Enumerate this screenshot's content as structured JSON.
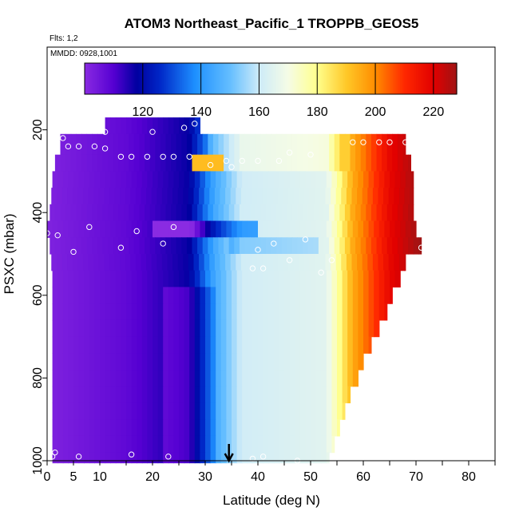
{
  "chart_data": {
    "type": "heatmap",
    "title": "ATOM3 Northeast_Pacific_1 TROPPB_GEOS5",
    "flights_label": "Flts: 1,2",
    "date_label": "MMDD: 0928,1001",
    "xlabel": "Latitude (deg N)",
    "ylabel": "PSXC (mbar)",
    "xlim": [
      0,
      85
    ],
    "ylim": [
      1000,
      0
    ],
    "xticks": [
      0,
      5,
      10,
      20,
      30,
      40,
      50,
      60,
      70,
      80
    ],
    "xtick_labels": [
      "0",
      "5",
      "10",
      "20",
      "30",
      "40",
      "50",
      "60",
      "70",
      "80"
    ],
    "yticks": [
      200,
      400,
      600,
      800,
      1000
    ],
    "ytick_labels": [
      "200",
      "400",
      "600",
      "800",
      "1000"
    ],
    "colorbar": {
      "min": 100,
      "max": 228,
      "ticks": [
        120,
        140,
        160,
        180,
        200,
        220
      ],
      "tick_labels": [
        "120",
        "140",
        "160",
        "180",
        "200",
        "220"
      ]
    },
    "marker_latitude": 34.5,
    "layers": [
      {
        "p0": 170,
        "p1": 210,
        "lat0": 11,
        "lat1": 29
      },
      {
        "p0": 210,
        "p1": 260,
        "lat0": 2.5,
        "lat1": 68
      },
      {
        "p0": 260,
        "p1": 300,
        "lat0": 1.5,
        "lat1": 69
      },
      {
        "p0": 300,
        "p1": 340,
        "lat0": 1,
        "lat1": 69.5
      },
      {
        "p0": 340,
        "p1": 380,
        "lat0": 0.8,
        "lat1": 69.5
      },
      {
        "p0": 380,
        "p1": 420,
        "lat0": 0.5,
        "lat1": 69.5
      },
      {
        "p0": 420,
        "p1": 460,
        "lat0": 0,
        "lat1": 70
      },
      {
        "p0": 460,
        "p1": 500,
        "lat0": 0.5,
        "lat1": 71
      },
      {
        "p0": 500,
        "p1": 540,
        "lat0": 0.8,
        "lat1": 68
      },
      {
        "p0": 540,
        "p1": 580,
        "lat0": 1,
        "lat1": 67
      },
      {
        "p0": 580,
        "p1": 620,
        "lat0": 1,
        "lat1": 65.5
      },
      {
        "p0": 620,
        "p1": 660,
        "lat0": 1,
        "lat1": 64.5
      },
      {
        "p0": 660,
        "p1": 700,
        "lat0": 1,
        "lat1": 63
      },
      {
        "p0": 700,
        "p1": 740,
        "lat0": 1,
        "lat1": 61.5
      },
      {
        "p0": 740,
        "p1": 780,
        "lat0": 1,
        "lat1": 60
      },
      {
        "p0": 780,
        "p1": 820,
        "lat0": 1,
        "lat1": 59
      },
      {
        "p0": 820,
        "p1": 860,
        "lat0": 1,
        "lat1": 57.5
      },
      {
        "p0": 860,
        "p1": 900,
        "lat0": 1,
        "lat1": 56.5
      },
      {
        "p0": 900,
        "p1": 940,
        "lat0": 1,
        "lat1": 55.5
      },
      {
        "p0": 940,
        "p1": 980,
        "lat0": 1,
        "lat1": 54.5
      },
      {
        "p0": 980,
        "p1": 1005,
        "lat0": 1,
        "lat1": 53.5
      }
    ],
    "points": [
      {
        "lat": 3,
        "p": 220
      },
      {
        "lat": 4,
        "p": 240
      },
      {
        "lat": 6,
        "p": 240
      },
      {
        "lat": 9,
        "p": 240
      },
      {
        "lat": 11,
        "p": 245
      },
      {
        "lat": 11,
        "p": 205
      },
      {
        "lat": 14,
        "p": 265
      },
      {
        "lat": 16,
        "p": 265
      },
      {
        "lat": 19,
        "p": 265
      },
      {
        "lat": 20,
        "p": 205
      },
      {
        "lat": 22,
        "p": 265
      },
      {
        "lat": 24,
        "p": 265
      },
      {
        "lat": 27,
        "p": 265
      },
      {
        "lat": 26,
        "p": 195
      },
      {
        "lat": 28,
        "p": 185
      },
      {
        "lat": 31,
        "p": 285
      },
      {
        "lat": 34,
        "p": 275
      },
      {
        "lat": 35,
        "p": 290
      },
      {
        "lat": 37,
        "p": 275
      },
      {
        "lat": 40,
        "p": 275
      },
      {
        "lat": 44,
        "p": 275
      },
      {
        "lat": 46,
        "p": 255
      },
      {
        "lat": 50,
        "p": 260
      },
      {
        "lat": 58,
        "p": 230
      },
      {
        "lat": 60,
        "p": 230
      },
      {
        "lat": 63,
        "p": 230
      },
      {
        "lat": 65,
        "p": 230
      },
      {
        "lat": 68,
        "p": 230
      },
      {
        "lat": 0,
        "p": 450
      },
      {
        "lat": 2,
        "p": 455
      },
      {
        "lat": 5,
        "p": 495
      },
      {
        "lat": 8,
        "p": 435
      },
      {
        "lat": 14,
        "p": 485
      },
      {
        "lat": 17,
        "p": 445
      },
      {
        "lat": 22,
        "p": 475
      },
      {
        "lat": 24,
        "p": 435
      },
      {
        "lat": 40,
        "p": 490
      },
      {
        "lat": 39,
        "p": 535
      },
      {
        "lat": 41,
        "p": 535
      },
      {
        "lat": 43,
        "p": 475
      },
      {
        "lat": 46,
        "p": 515
      },
      {
        "lat": 49,
        "p": 465
      },
      {
        "lat": 52,
        "p": 545
      },
      {
        "lat": 54,
        "p": 515
      },
      {
        "lat": 71,
        "p": 485
      },
      {
        "lat": 1,
        "p": 990
      },
      {
        "lat": 1.5,
        "p": 980
      },
      {
        "lat": 6,
        "p": 990
      },
      {
        "lat": 16,
        "p": 985
      },
      {
        "lat": 23,
        "p": 990
      },
      {
        "lat": 39,
        "p": 995
      },
      {
        "lat": 41,
        "p": 990
      },
      {
        "lat": 47.5,
        "p": 1000
      }
    ]
  }
}
